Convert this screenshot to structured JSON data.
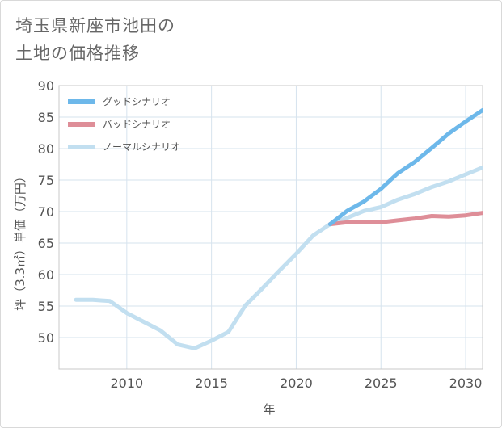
{
  "title_lines": [
    "埼玉県新座市池田の",
    "土地の価格推移"
  ],
  "chart_data": {
    "type": "line",
    "xlabel": "年",
    "ylabel": "坪（3.3㎡）単価（万円）",
    "xlim": [
      2006,
      2031
    ],
    "ylim": [
      45,
      90
    ],
    "x_ticks": [
      2010,
      2015,
      2020,
      2025,
      2030
    ],
    "y_ticks": [
      50,
      55,
      60,
      65,
      70,
      75,
      80,
      85,
      90
    ],
    "grid": true,
    "legend_position": "top-left",
    "series": [
      {
        "name": "グッドシナリオ",
        "color": "#6db8ea",
        "points": [
          [
            2022,
            68.0
          ],
          [
            2023,
            70.1
          ],
          [
            2024,
            71.6
          ],
          [
            2025,
            73.6
          ],
          [
            2026,
            76.1
          ],
          [
            2027,
            77.9
          ],
          [
            2028,
            80.1
          ],
          [
            2029,
            82.4
          ],
          [
            2030,
            84.3
          ],
          [
            2031,
            86.1
          ]
        ]
      },
      {
        "name": "バッドシナリオ",
        "color": "#de8e98",
        "points": [
          [
            2022,
            68.0
          ],
          [
            2023,
            68.3
          ],
          [
            2024,
            68.4
          ],
          [
            2025,
            68.3
          ],
          [
            2026,
            68.6
          ],
          [
            2027,
            68.9
          ],
          [
            2028,
            69.3
          ],
          [
            2029,
            69.2
          ],
          [
            2030,
            69.4
          ],
          [
            2031,
            69.8
          ]
        ]
      },
      {
        "name": "ノーマルシナリオ",
        "color": "#c2dff0",
        "points": [
          [
            2007,
            56.0
          ],
          [
            2008,
            56.0
          ],
          [
            2009,
            55.8
          ],
          [
            2010,
            53.9
          ],
          [
            2011,
            52.5
          ],
          [
            2012,
            51.1
          ],
          [
            2013,
            48.9
          ],
          [
            2014,
            48.3
          ],
          [
            2015,
            49.5
          ],
          [
            2016,
            50.9
          ],
          [
            2017,
            55.1
          ],
          [
            2018,
            57.8
          ],
          [
            2019,
            60.6
          ],
          [
            2020,
            63.3
          ],
          [
            2021,
            66.2
          ],
          [
            2022,
            68.0
          ],
          [
            2023,
            69.0
          ],
          [
            2024,
            70.1
          ],
          [
            2025,
            70.7
          ],
          [
            2026,
            71.9
          ],
          [
            2027,
            72.8
          ],
          [
            2028,
            73.9
          ],
          [
            2029,
            74.8
          ],
          [
            2030,
            75.9
          ],
          [
            2031,
            77.0
          ]
        ]
      }
    ]
  }
}
